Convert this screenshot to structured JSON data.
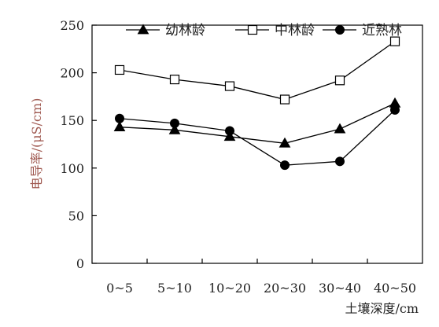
{
  "chart_data": {
    "type": "line",
    "title": "",
    "xlabel": "土壤深度/cm",
    "ylabel": "电导率/(μS/cm)",
    "categories": [
      "0~5",
      "5~10",
      "10~20",
      "20~30",
      "30~40",
      "40~50"
    ],
    "ylim": [
      0,
      250
    ],
    "yticks": [
      0,
      50,
      100,
      150,
      200,
      250
    ],
    "grid": false,
    "legend_position": "top",
    "series": [
      {
        "name": "幼林龄",
        "marker": "triangle",
        "values": [
          143,
          140,
          133,
          126,
          141,
          168
        ]
      },
      {
        "name": "中林龄",
        "marker": "square-open",
        "values": [
          203,
          193,
          186,
          172,
          192,
          233
        ]
      },
      {
        "name": "近熟林",
        "marker": "circle",
        "values": [
          152,
          147,
          139,
          103,
          107,
          161
        ]
      }
    ]
  }
}
